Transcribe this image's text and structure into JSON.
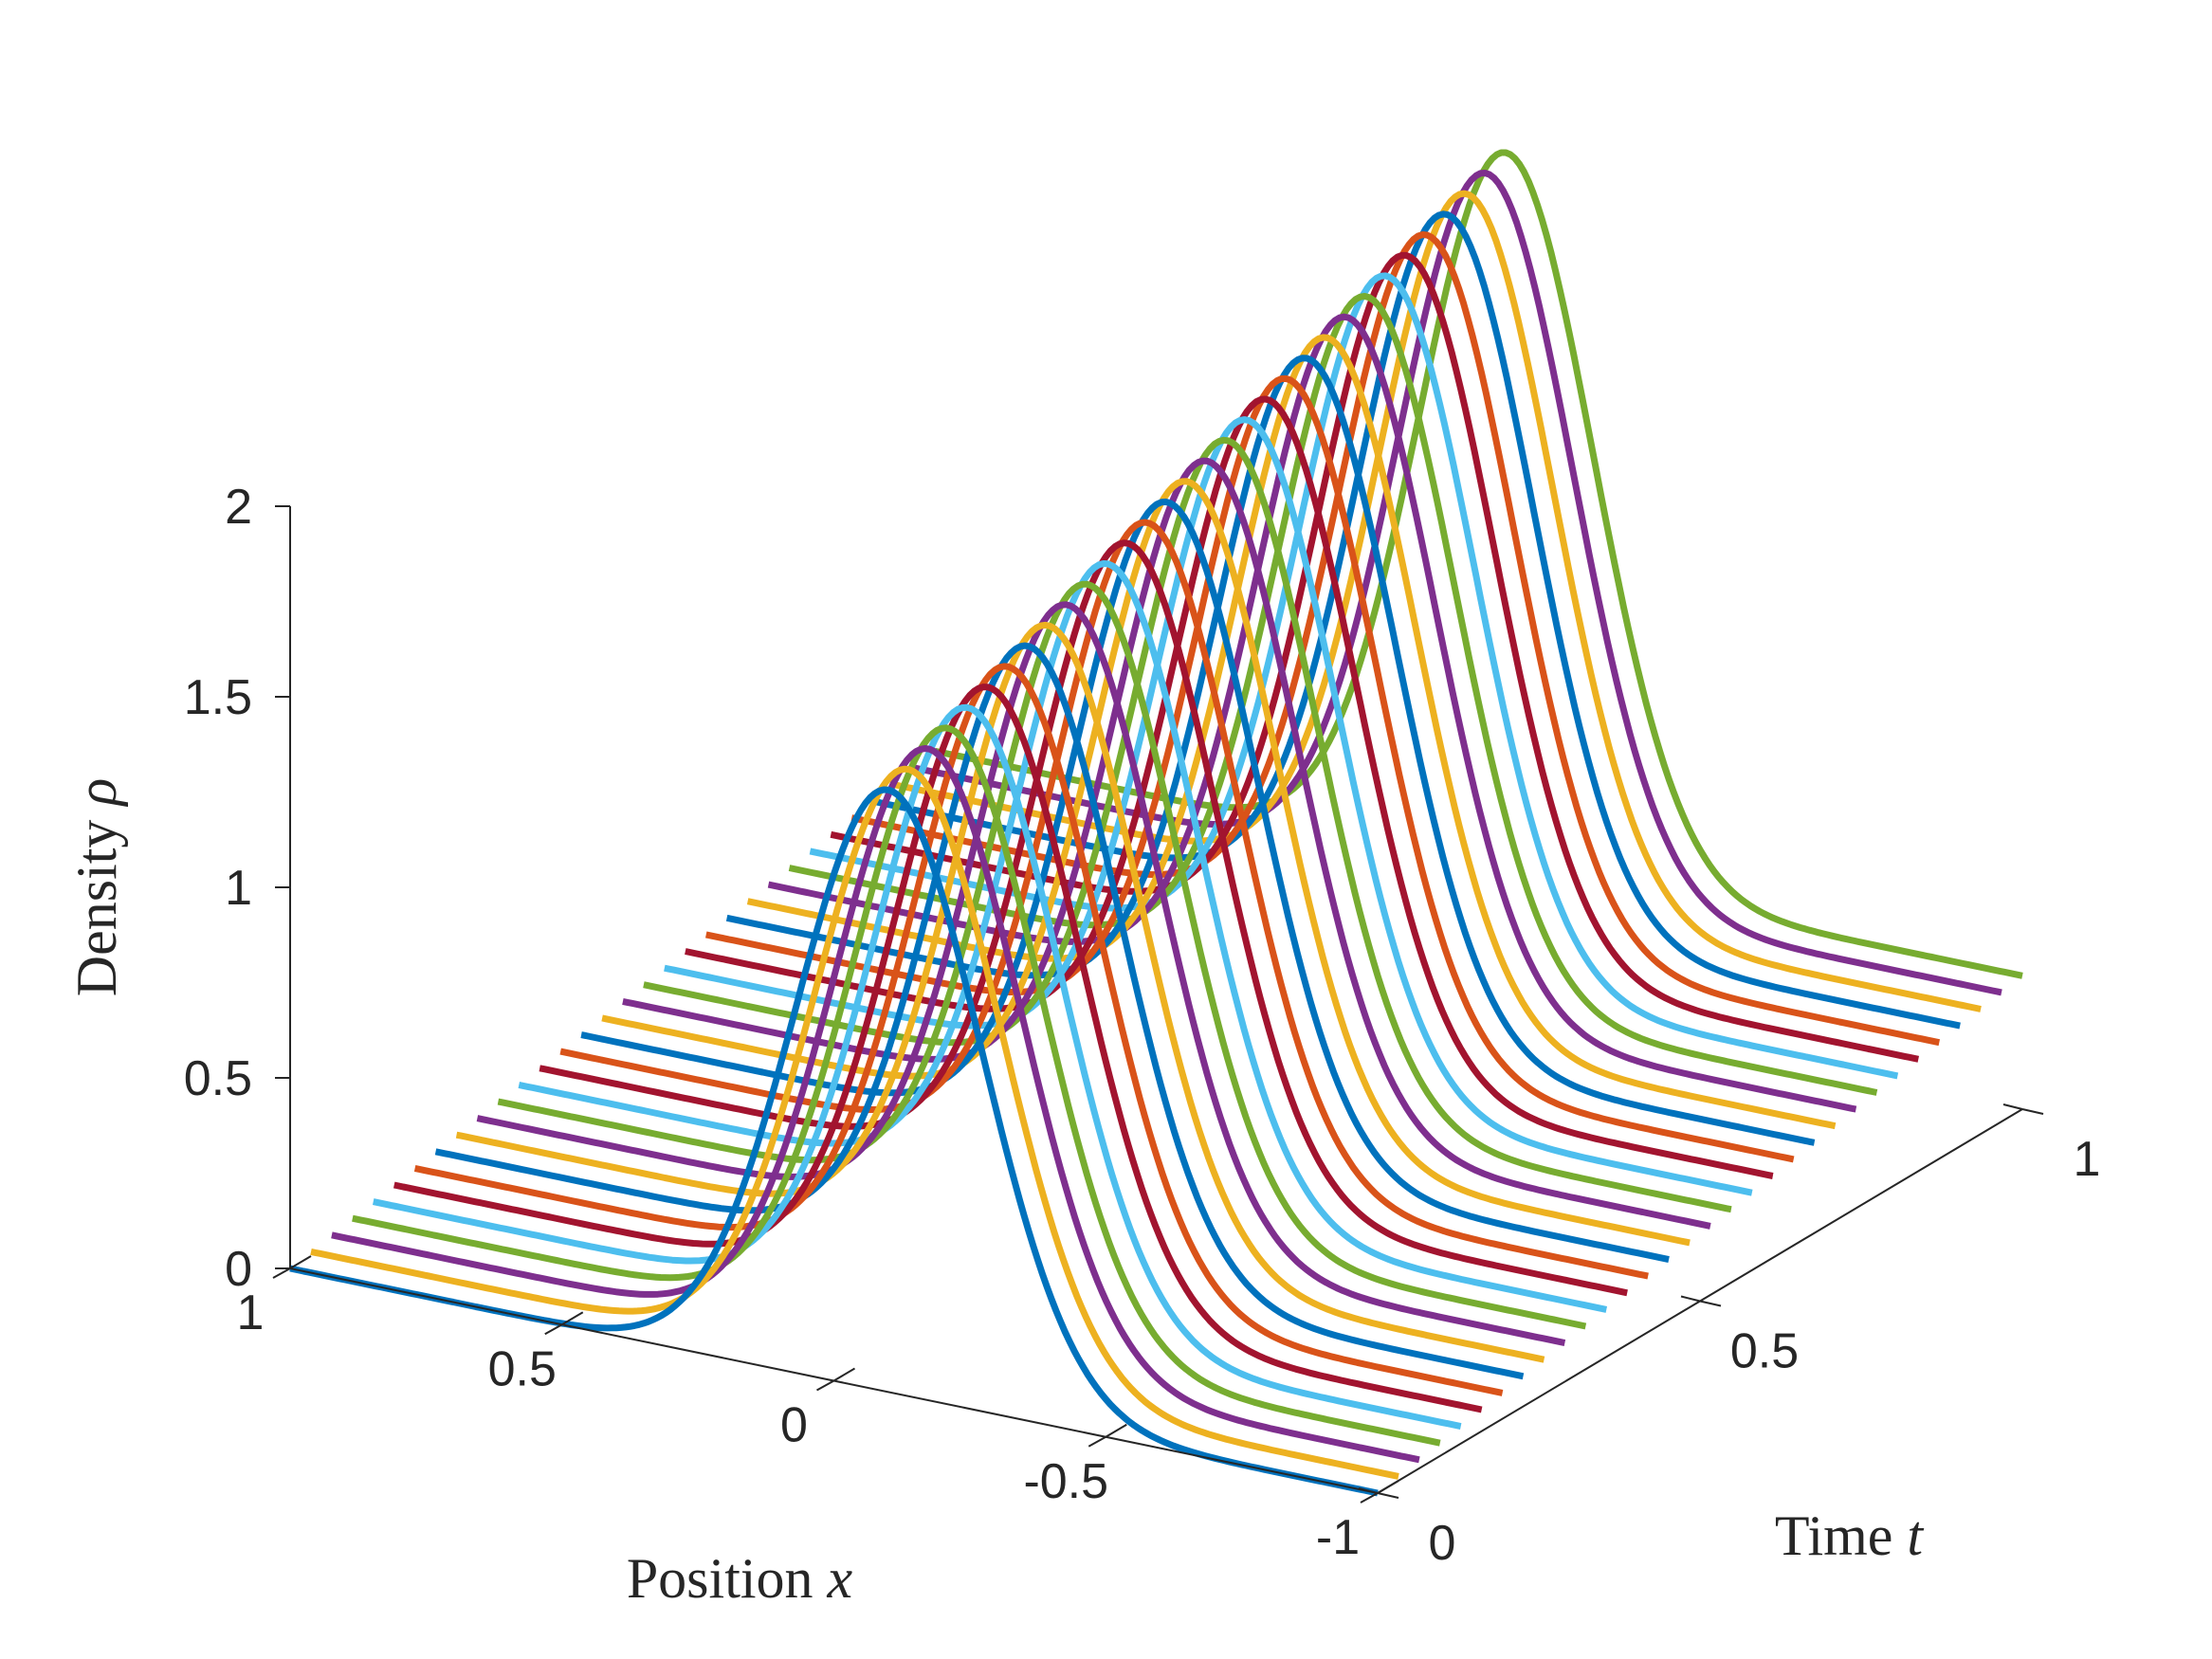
{
  "chart_data": {
    "type": "line",
    "projection": "3d-waterfall",
    "xlabel": {
      "text": "Position ",
      "symbol": "x"
    },
    "ylabel": {
      "text": "Time ",
      "symbol": "t"
    },
    "zlabel": {
      "text": "Density ",
      "symbol": "ρ"
    },
    "xlim": [
      -1,
      1
    ],
    "ylim": [
      0,
      1
    ],
    "zlim": [
      0,
      2
    ],
    "grid": false,
    "legend": "none",
    "x_ticks": [
      "1",
      "0.5",
      "0",
      "-0.5",
      "-1"
    ],
    "x_tick_values": [
      1,
      0.5,
      0,
      -0.5,
      -1
    ],
    "y_ticks": [
      "0",
      "0.5",
      "1"
    ],
    "y_tick_values": [
      0,
      0.5,
      1
    ],
    "z_ticks": [
      "0",
      "0.5",
      "1",
      "1.5",
      "2"
    ],
    "z_tick_values": [
      0,
      0.5,
      1,
      1.5,
      2
    ],
    "series_times": [
      0,
      0.0323,
      0.0645,
      0.0968,
      0.129,
      0.1613,
      0.1935,
      0.2258,
      0.2581,
      0.2903,
      0.3226,
      0.3548,
      0.3871,
      0.4194,
      0.4516,
      0.4839,
      0.5161,
      0.5484,
      0.5806,
      0.6129,
      0.6452,
      0.6774,
      0.7097,
      0.7419,
      0.7742,
      0.8065,
      0.8387,
      0.871,
      0.9032,
      0.9355,
      0.9677,
      1
    ],
    "series_model": {
      "form": "baseline + amplitude * exp(-(x - center)^2 / (2 * width^2))",
      "baseline_at_t0": 0.0,
      "baseline_at_t1": 0.35,
      "amplitude_at_t0": 1.58,
      "amplitude_at_t1": 1.88,
      "center_at_t0": -0.1,
      "center_at_t1": -0.05,
      "width_at_t0": 0.17,
      "width_at_t1": 0.16
    },
    "colors": [
      "#0072BD",
      "#EDB120",
      "#7E2F8E",
      "#77AC30",
      "#4DBEEE",
      "#A2142F",
      "#D95319"
    ]
  }
}
